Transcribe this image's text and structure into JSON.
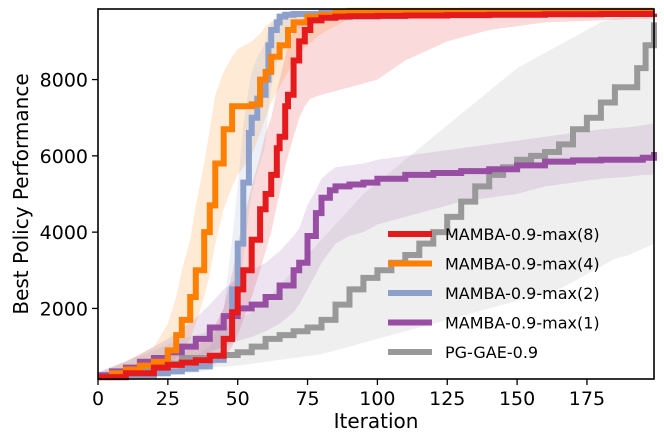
{
  "chart_data": {
    "type": "line",
    "title": "",
    "xlabel": "Iteration",
    "ylabel": "Best Policy Performance",
    "xlim": [
      0,
      199
    ],
    "ylim": [
      150,
      9850
    ],
    "xticks": [
      0,
      25,
      50,
      75,
      100,
      125,
      150,
      175
    ],
    "yticks": [
      2000,
      4000,
      6000,
      8000
    ],
    "grid": false,
    "legend_position": "lower-right",
    "series": [
      {
        "name": "MAMBA-0.9-max(8)",
        "color": "#e41a1c",
        "x": [
          0,
          10,
          20,
          25,
          30,
          35,
          40,
          45,
          48,
          50,
          52,
          55,
          58,
          60,
          62,
          64,
          65,
          67,
          68,
          70,
          72,
          74,
          76,
          80,
          85,
          90,
          100,
          110,
          125,
          140,
          160,
          180,
          199
        ],
        "y": [
          200,
          300,
          450,
          520,
          580,
          640,
          760,
          1200,
          1900,
          2500,
          3000,
          3800,
          4600,
          5000,
          5500,
          6200,
          6500,
          7300,
          7600,
          8500,
          9000,
          9300,
          9550,
          9620,
          9650,
          9660,
          9670,
          9680,
          9690,
          9700,
          9710,
          9720,
          9730
        ],
        "band_lower": [
          150,
          200,
          300,
          350,
          400,
          450,
          500,
          700,
          1000,
          1300,
          1700,
          2300,
          3000,
          3500,
          4000,
          4700,
          5000,
          5700,
          6000,
          6500,
          7000,
          7300,
          7500,
          7600,
          7700,
          7800,
          8000,
          8500,
          9000,
          9300,
          9500,
          9550,
          9600
        ],
        "band_upper": [
          260,
          420,
          650,
          750,
          850,
          1000,
          1300,
          2000,
          2900,
          3700,
          4300,
          5200,
          6000,
          6600,
          7000,
          7700,
          8000,
          8600,
          8900,
          9300,
          9500,
          9650,
          9750,
          9800,
          9800,
          9800,
          9800,
          9800,
          9800,
          9800,
          9800,
          9800,
          9800
        ]
      },
      {
        "name": "MAMBA-0.9-max(4)",
        "color": "#ff7f00",
        "x": [
          0,
          5,
          10,
          15,
          20,
          25,
          28,
          30,
          33,
          35,
          38,
          40,
          42,
          45,
          48,
          50,
          55,
          58,
          60,
          62,
          65,
          68,
          70,
          75,
          80,
          85,
          90,
          100,
          120,
          150,
          199
        ],
        "y": [
          200,
          300,
          400,
          500,
          600,
          900,
          1300,
          1700,
          2300,
          3000,
          4000,
          4700,
          5800,
          6700,
          7300,
          7300,
          7350,
          8000,
          8200,
          8600,
          8900,
          9300,
          9500,
          9650,
          9700,
          9760,
          9800,
          9800,
          9800,
          9800,
          9800
        ],
        "band_lower": [
          150,
          200,
          250,
          300,
          400,
          500,
          700,
          900,
          1200,
          1600,
          2300,
          2900,
          3700,
          4600,
          5200,
          5500,
          6000,
          6600,
          7000,
          7400,
          7800,
          8200,
          8500,
          8900,
          9200,
          9400,
          9600,
          9700,
          9750,
          9780,
          9800
        ],
        "band_upper": [
          300,
          450,
          600,
          800,
          1000,
          1600,
          2300,
          3000,
          3800,
          4700,
          5800,
          6700,
          7600,
          8200,
          8600,
          8800,
          9000,
          9200,
          9400,
          9500,
          9600,
          9700,
          9750,
          9800,
          9800,
          9800,
          9800,
          9800,
          9800,
          9800,
          9800
        ]
      },
      {
        "name": "MAMBA-0.9-max(2)",
        "color": "#8da0cb",
        "x": [
          0,
          10,
          20,
          25,
          30,
          35,
          40,
          45,
          48,
          50,
          52,
          54,
          55,
          57,
          58,
          60,
          61,
          62,
          64,
          65,
          67,
          70,
          80,
          100,
          130,
          160,
          199
        ],
        "y": [
          200,
          250,
          300,
          350,
          420,
          480,
          650,
          1200,
          2500,
          3700,
          5300,
          6600,
          7000,
          7500,
          7600,
          8000,
          8900,
          9300,
          9500,
          9650,
          9700,
          9720,
          9750,
          9780,
          9800,
          9800,
          9800
        ],
        "band_lower": [
          150,
          180,
          200,
          230,
          280,
          320,
          400,
          700,
          1400,
          2200,
          3300,
          4500,
          5000,
          5600,
          5800,
          6300,
          7200,
          7800,
          8400,
          8800,
          9100,
          9300,
          9500,
          9650,
          9750,
          9800,
          9800
        ],
        "band_upper": [
          260,
          330,
          420,
          500,
          620,
          750,
          1000,
          2000,
          3800,
          5200,
          6800,
          7800,
          8200,
          8600,
          8700,
          9000,
          9300,
          9500,
          9650,
          9750,
          9780,
          9800,
          9800,
          9800,
          9800,
          9800,
          9800
        ]
      },
      {
        "name": "MAMBA-0.9-max(1)",
        "color": "#984ea3",
        "x": [
          0,
          5,
          10,
          15,
          20,
          25,
          30,
          35,
          40,
          45,
          50,
          55,
          60,
          65,
          70,
          72,
          75,
          78,
          80,
          83,
          85,
          90,
          95,
          100,
          110,
          120,
          130,
          140,
          150,
          160,
          170,
          180,
          190,
          195,
          199
        ],
        "y": [
          250,
          350,
          450,
          600,
          700,
          850,
          1000,
          1200,
          1500,
          1800,
          2000,
          2100,
          2300,
          2600,
          3000,
          3200,
          3900,
          4500,
          4900,
          5100,
          5200,
          5250,
          5300,
          5400,
          5500,
          5550,
          5600,
          5650,
          5750,
          5850,
          5880,
          5900,
          5900,
          5950,
          6100
        ],
        "band_lower": [
          180,
          250,
          330,
          400,
          450,
          530,
          600,
          700,
          850,
          1000,
          1150,
          1250,
          1400,
          1600,
          1900,
          2100,
          2500,
          2900,
          3200,
          3500,
          3700,
          3900,
          4000,
          4200,
          4400,
          4600,
          4800,
          4900,
          5000,
          5200,
          5300,
          5400,
          5450,
          5500,
          5500
        ],
        "band_upper": [
          330,
          480,
          620,
          800,
          1000,
          1200,
          1450,
          1750,
          2100,
          2500,
          2800,
          3000,
          3200,
          3500,
          3900,
          4100,
          4700,
          5100,
          5400,
          5600,
          5700,
          5750,
          5800,
          5900,
          6000,
          6100,
          6200,
          6300,
          6400,
          6500,
          6600,
          6700,
          6750,
          6800,
          6850
        ]
      },
      {
        "name": "PG-GAE-0.9",
        "color": "#999999",
        "x": [
          0,
          10,
          20,
          30,
          40,
          45,
          50,
          55,
          60,
          65,
          70,
          75,
          80,
          85,
          90,
          95,
          100,
          105,
          110,
          115,
          120,
          125,
          130,
          135,
          140,
          145,
          150,
          155,
          160,
          165,
          170,
          175,
          180,
          185,
          190,
          193,
          196,
          199
        ],
        "y": [
          200,
          350,
          550,
          700,
          750,
          780,
          850,
          1000,
          1200,
          1300,
          1400,
          1500,
          1700,
          2100,
          2500,
          2800,
          3000,
          3200,
          3400,
          3700,
          4000,
          4400,
          4800,
          5200,
          5500,
          5700,
          5900,
          6000,
          6100,
          6300,
          6700,
          7000,
          7400,
          7800,
          7800,
          8300,
          8900,
          9500
        ],
        "band_lower": [
          150,
          200,
          300,
          400,
          450,
          470,
          500,
          550,
          600,
          650,
          700,
          750,
          800,
          900,
          1000,
          1100,
          1200,
          1300,
          1400,
          1500,
          1600,
          1700,
          1800,
          1900,
          2000,
          2100,
          2200,
          2300,
          2400,
          2500,
          2700,
          2900,
          3100,
          3300,
          3400,
          3500,
          3600,
          3700
        ],
        "band_upper": [
          300,
          600,
          900,
          1200,
          1400,
          1500,
          1700,
          1900,
          2200,
          2600,
          3000,
          3400,
          3800,
          4200,
          4600,
          5000,
          5300,
          5600,
          5900,
          6200,
          6500,
          6800,
          7100,
          7400,
          7700,
          8000,
          8300,
          8500,
          8700,
          8900,
          9100,
          9300,
          9500,
          9600,
          9700,
          9750,
          9800,
          9800
        ]
      }
    ]
  }
}
